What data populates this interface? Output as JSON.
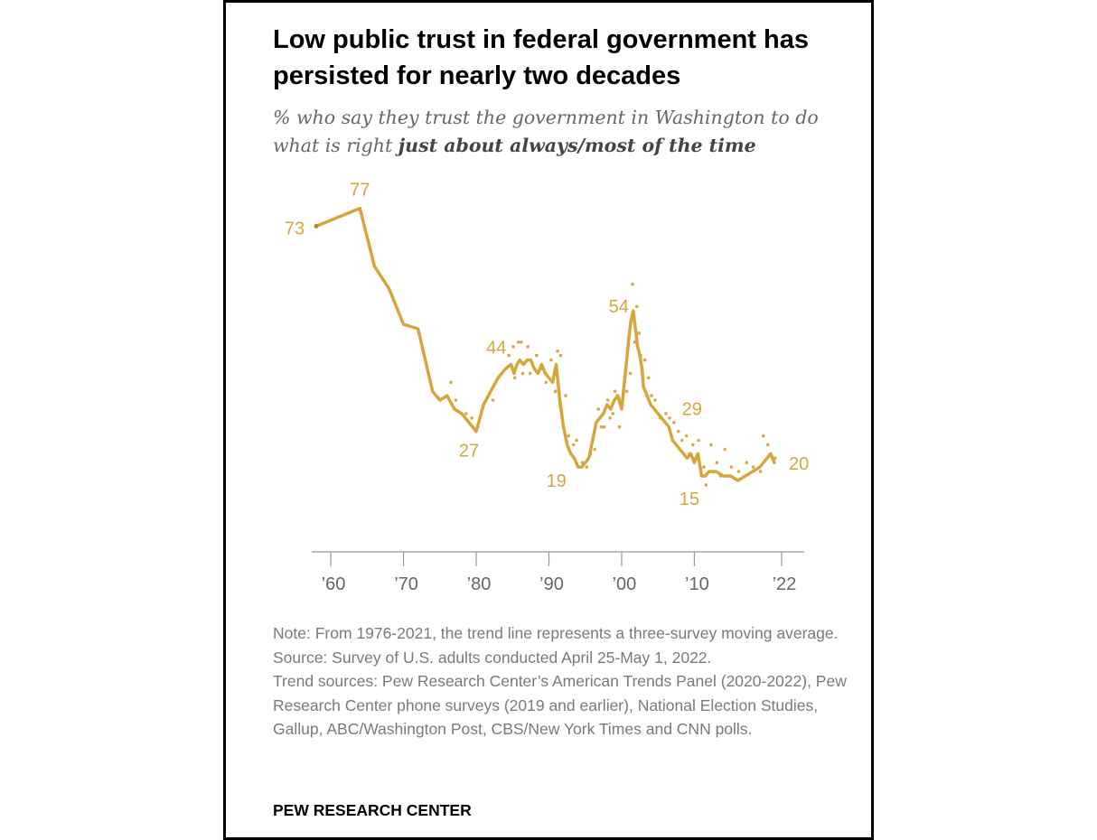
{
  "title": "Low public trust in federal government has persisted for nearly two decades",
  "subtitle": {
    "lead": "% who say they trust the government in Washington to do what is right ",
    "emphasis": "just about always/most of the time"
  },
  "colors": {
    "accent": "#D4A63C",
    "axis": "#999999",
    "text_muted": "#7a7a7a",
    "title": "#000000"
  },
  "notes": [
    "Note: From 1976-2021, the trend line represents a three-survey moving average.",
    "Source: Survey of U.S. adults conducted April 25-May 1, 2022.",
    "Trend sources: Pew Research Center’s American Trends Panel (2020-2022), Pew Research Center phone surveys (2019 and earlier), National Election Studies, Gallup, ABC/Washington Post, CBS/New York Times and CNN polls."
  ],
  "brand": "PEW RESEARCH CENTER",
  "chart_data": {
    "type": "line",
    "title": "Low public trust in federal government has persisted for nearly two decades",
    "xlabel": "",
    "ylabel": "",
    "xlim": [
      1958,
      2023
    ],
    "ylim": [
      0,
      85
    ],
    "x_ticks": [
      {
        "value": 1960,
        "label": "’60"
      },
      {
        "value": 1970,
        "label": "’70"
      },
      {
        "value": 1980,
        "label": "’80"
      },
      {
        "value": 1990,
        "label": "’90"
      },
      {
        "value": 2000,
        "label": "’00"
      },
      {
        "value": 2010,
        "label": "’10"
      },
      {
        "value": 2022,
        "label": "’22"
      }
    ],
    "grid": false,
    "series": [
      {
        "name": "Three-survey moving average",
        "x": [
          1958,
          1964,
          1966,
          1968,
          1970,
          1972,
          1974,
          1975,
          1976,
          1977,
          1978,
          1979,
          1980,
          1981,
          1982,
          1983,
          1984,
          1984.8,
          1985.2,
          1985.6,
          1986,
          1986.5,
          1987,
          1987.5,
          1988,
          1988.5,
          1989,
          1989.5,
          1990,
          1990.5,
          1991,
          1991.5,
          1992,
          1992.5,
          1993,
          1993.5,
          1994,
          1994.5,
          1995,
          1995.5,
          1996,
          1996.5,
          1997,
          1997.5,
          1998,
          1998.5,
          1999,
          1999.5,
          2000,
          2000.5,
          2001,
          2001.3,
          2001.6,
          2001.9,
          2002.2,
          2002.5,
          2002.8,
          2003,
          2003.5,
          2004,
          2004.5,
          2005,
          2005.5,
          2006,
          2006.5,
          2007,
          2007.5,
          2008,
          2008.5,
          2009,
          2009.5,
          2010,
          2010.5,
          2011,
          2011.5,
          2012,
          2013,
          2014,
          2015,
          2016,
          2017,
          2018,
          2019,
          2019.5,
          2020,
          2020.5,
          2021
        ],
        "values": [
          73,
          77,
          64,
          59,
          51,
          50,
          36,
          34,
          35,
          32,
          31,
          29,
          27,
          33,
          36,
          39,
          41,
          42,
          40,
          42,
          43,
          42,
          43,
          43,
          41,
          40,
          42,
          40,
          39,
          38,
          42,
          34,
          28,
          24,
          22,
          21,
          19,
          19,
          20,
          21,
          25,
          29,
          30,
          31,
          33,
          32,
          34,
          35,
          32,
          40,
          48,
          52,
          54,
          50,
          46,
          44,
          41,
          37,
          35,
          33,
          32,
          31,
          30,
          29,
          28,
          25,
          24,
          23,
          22,
          21,
          22,
          20,
          22,
          17,
          17,
          18,
          18,
          17,
          17,
          16,
          17,
          18,
          19,
          20,
          21,
          22,
          20
        ]
      },
      {
        "name": "Individual surveys",
        "x": [
          1976.5,
          1977.2,
          1978.6,
          1979.4,
          1980.2,
          1982.3,
          1984.5,
          1985.1,
          1985.3,
          1985.8,
          1986.2,
          1986.4,
          1987.1,
          1987.4,
          1988.3,
          1988.9,
          1989.6,
          1990.3,
          1990.9,
          1991.2,
          1991.6,
          1992.3,
          1992.7,
          1993.4,
          1993.8,
          1994.6,
          1995.2,
          1995.7,
          1996.3,
          1996.8,
          1997.2,
          1997.6,
          1998.1,
          1998.4,
          1998.8,
          1999.1,
          1999.4,
          1999.7,
          2000.1,
          2000.4,
          2000.7,
          2001.2,
          2001.5,
          2001.8,
          2002.1,
          2002.4,
          2002.6,
          2003.2,
          2003.7,
          2004.1,
          2004.6,
          2005.3,
          2006.1,
          2006.6,
          2007.2,
          2007.8,
          2008.3,
          2008.9,
          2009.3,
          2009.8,
          2010.2,
          2010.6,
          2011.3,
          2011.6,
          2012.3,
          2013.1,
          2013.6,
          2014.2,
          2015.1,
          2016.1,
          2017.2,
          2018.1,
          2019.1,
          2019.5,
          2020.1,
          2021.1
        ],
        "values": [
          38,
          34,
          31,
          30,
          28,
          34,
          44,
          46,
          39,
          47,
          47,
          40,
          46,
          40,
          44,
          41,
          38,
          43,
          36,
          45,
          44,
          35,
          26,
          24,
          25,
          20,
          19,
          22,
          23,
          32,
          28,
          28,
          34,
          30,
          31,
          36,
          35,
          28,
          33,
          38,
          36,
          40,
          60,
          47,
          55,
          49,
          44,
          43,
          39,
          35,
          34,
          30,
          31,
          30,
          29,
          27,
          25,
          26,
          22,
          24,
          21,
          25,
          19,
          15,
          24,
          20,
          17,
          23,
          19,
          18,
          20,
          19,
          18,
          26,
          24,
          21
        ]
      }
    ],
    "annotations": [
      {
        "x": 1958,
        "y": 73,
        "label": "73"
      },
      {
        "x": 1964,
        "y": 77,
        "label": "77"
      },
      {
        "x": 1980,
        "y": 27,
        "label": "27"
      },
      {
        "x": 1985.5,
        "y": 44,
        "label": "44"
      },
      {
        "x": 1994,
        "y": 19,
        "label": "19"
      },
      {
        "x": 2001.6,
        "y": 54,
        "label": "54"
      },
      {
        "x": 2006.7,
        "y": 29,
        "label": "29"
      },
      {
        "x": 2011.3,
        "y": 15,
        "label": "15"
      },
      {
        "x": 2022,
        "y": 20,
        "label": "20"
      }
    ]
  }
}
